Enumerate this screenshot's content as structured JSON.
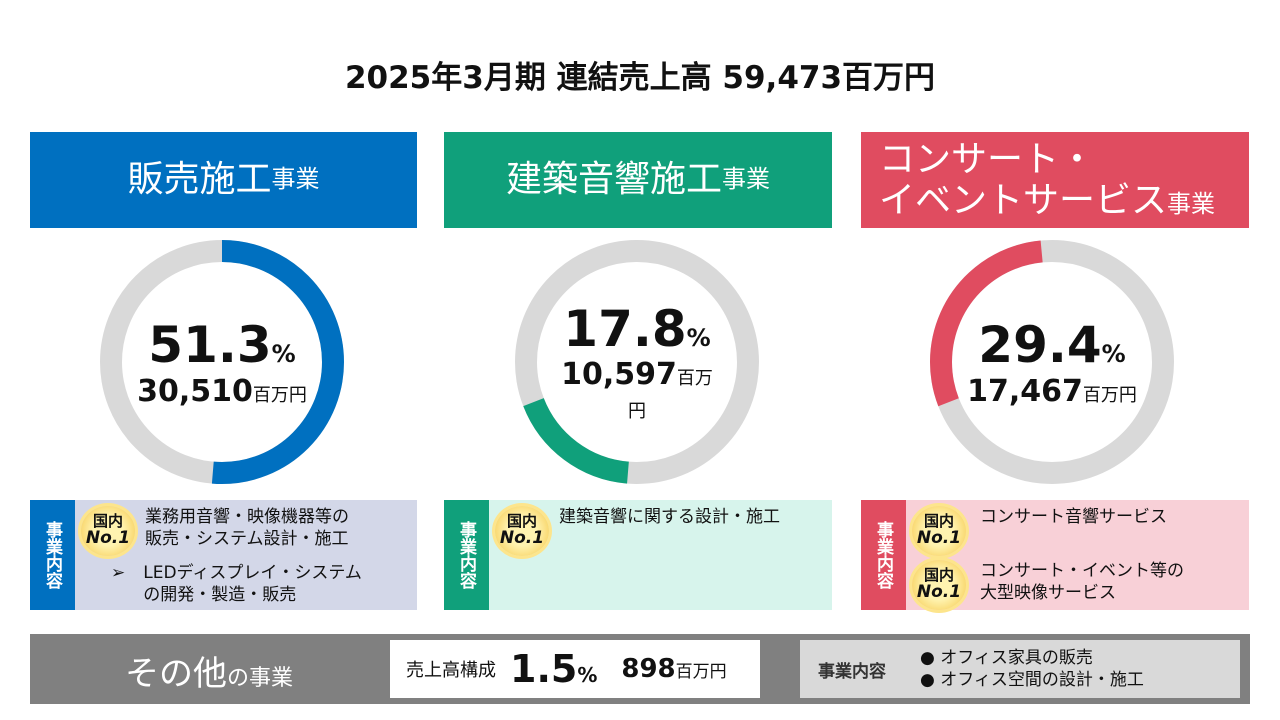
{
  "title": "2025年3月期 連結売上高  59,473百万円",
  "segments": [
    {
      "name": "販売施工",
      "suffix": "事業",
      "color": "#0070c0",
      "panel": "#d3d7e8",
      "pct": "51.3",
      "pct_unit": "%",
      "start": 0,
      "value": 51.3,
      "amount": "30,510",
      "unit": "百万円",
      "side": "事業内容",
      "badge": "国内",
      "badge2": "No.1",
      "items": [
        "業務用音響・映像機器等の",
        "販売・システム設計・施工"
      ],
      "bullet": "➢",
      "sub": [
        "LEDディスプレイ・システム",
        "の開発・製造・販売"
      ]
    },
    {
      "name": "建築音響施工",
      "suffix": "事業",
      "color": "#10a07b",
      "panel": "#d7f4ec",
      "pct": "17.8",
      "pct_unit": "%",
      "start": 51.3,
      "value": 17.8,
      "amount": "10,597",
      "unit": "百万円",
      "side": "事業内容",
      "badge": "国内",
      "badge2": "No.1",
      "items": [
        "建築音響に関する設計・施工"
      ]
    },
    {
      "name1": "コンサート・",
      "name2": "イベントサービス",
      "suffix": "事業",
      "color": "#e04c60",
      "panel": "#f8d0d7",
      "pct": "29.4",
      "pct_unit": "%",
      "start": 69.1,
      "value": 29.4,
      "amount": "17,467",
      "unit": "百万円",
      "side": "事業内容",
      "badge": "国内",
      "badge2": "No.1",
      "items": [
        "コンサート音響サービス"
      ],
      "items2": [
        "コンサート・イベント等の",
        "大型映像サービス"
      ]
    }
  ],
  "other": {
    "name": "その他",
    "suffix": "の事業",
    "label": "売上高構成",
    "pct": "1.5",
    "pct_unit": "%",
    "amount": "898",
    "unit": "百万円",
    "content_label": "事業内容",
    "items": [
      "● オフィス家具の販売",
      "● オフィス空間の設計・施工"
    ]
  },
  "ring_gray": "#d9d9d9"
}
